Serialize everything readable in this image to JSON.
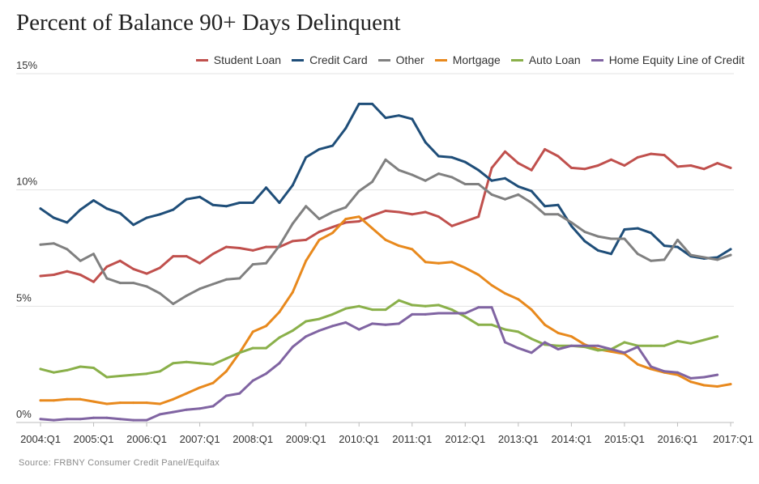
{
  "chart_data": {
    "type": "line",
    "title": "Percent of Balance 90+ Days Delinquent",
    "source": "Source: FRBNY Consumer Credit Panel/Equifax",
    "xlabel": "",
    "ylabel": "",
    "ylim": [
      0,
      15
    ],
    "y_ticks": [
      0,
      5,
      10,
      15
    ],
    "y_tick_labels": [
      "0%",
      "5%",
      "10%",
      "15%"
    ],
    "x_ticks": [
      "2004:Q1",
      "2005:Q1",
      "2006:Q1",
      "2007:Q1",
      "2008:Q1",
      "2009:Q1",
      "2010:Q1",
      "2011:Q1",
      "2012:Q1",
      "2013:Q1",
      "2014:Q1",
      "2015:Q1",
      "2016:Q1",
      "2017:Q1"
    ],
    "grid": true,
    "legend_position": "top-right",
    "series": [
      {
        "name": "Student Loan",
        "color": "#c0504d",
        "values": [
          6.3,
          6.35,
          6.5,
          6.35,
          6.05,
          6.7,
          6.95,
          6.6,
          6.4,
          6.65,
          7.15,
          7.15,
          6.85,
          7.25,
          7.55,
          7.5,
          7.4,
          7.55,
          7.55,
          7.8,
          7.85,
          8.2,
          8.4,
          8.6,
          8.65,
          8.9,
          9.1,
          9.05,
          8.95,
          9.05,
          8.85,
          8.45,
          8.65,
          8.85,
          10.95,
          11.65,
          11.15,
          10.85,
          11.75,
          11.45,
          10.95,
          10.9,
          11.05,
          11.3,
          11.05,
          11.4,
          11.55,
          11.5,
          11.0,
          11.05,
          10.9,
          11.15,
          10.95
        ]
      },
      {
        "name": "Credit Card",
        "color": "#1f4e79",
        "values": [
          9.2,
          8.8,
          8.6,
          9.15,
          9.55,
          9.2,
          9.0,
          8.5,
          8.8,
          8.95,
          9.15,
          9.6,
          9.7,
          9.35,
          9.3,
          9.45,
          9.45,
          10.1,
          9.45,
          10.2,
          11.4,
          11.75,
          11.9,
          12.65,
          13.7,
          13.7,
          13.1,
          13.2,
          13.05,
          12.05,
          11.45,
          11.4,
          11.2,
          10.85,
          10.4,
          10.5,
          10.15,
          9.95,
          9.3,
          9.35,
          8.45,
          7.8,
          7.4,
          7.25,
          8.3,
          8.35,
          8.15,
          7.6,
          7.55,
          7.15,
          7.05,
          7.1,
          7.45
        ]
      },
      {
        "name": "Other",
        "color": "#808080",
        "values": [
          7.65,
          7.7,
          7.45,
          6.95,
          7.25,
          6.2,
          6.0,
          6.0,
          5.85,
          5.55,
          5.1,
          5.45,
          5.75,
          5.95,
          6.15,
          6.2,
          6.8,
          6.85,
          7.6,
          8.55,
          9.3,
          8.75,
          9.05,
          9.25,
          9.95,
          10.35,
          11.3,
          10.85,
          10.65,
          10.4,
          10.7,
          10.55,
          10.25,
          10.25,
          9.8,
          9.6,
          9.8,
          9.45,
          8.95,
          8.95,
          8.6,
          8.2,
          8.0,
          7.9,
          7.9,
          7.25,
          6.95,
          7.0,
          7.85,
          7.2,
          7.1,
          7.0,
          7.2
        ]
      },
      {
        "name": "Mortgage",
        "color": "#e8891d",
        "values": [
          0.95,
          0.95,
          1.0,
          1.0,
          0.9,
          0.8,
          0.85,
          0.85,
          0.85,
          0.8,
          1.0,
          1.25,
          1.5,
          1.7,
          2.2,
          3.0,
          3.9,
          4.15,
          4.75,
          5.6,
          6.95,
          7.85,
          8.15,
          8.75,
          8.85,
          8.35,
          7.85,
          7.6,
          7.45,
          6.9,
          6.85,
          6.9,
          6.65,
          6.35,
          5.9,
          5.55,
          5.3,
          4.85,
          4.2,
          3.85,
          3.7,
          3.35,
          3.15,
          3.05,
          2.95,
          2.5,
          2.3,
          2.15,
          2.05,
          1.75,
          1.6,
          1.55,
          1.65
        ]
      },
      {
        "name": "Auto Loan",
        "color": "#8ab04a",
        "values": [
          2.3,
          2.15,
          2.25,
          2.4,
          2.35,
          1.95,
          2.0,
          2.05,
          2.1,
          2.2,
          2.55,
          2.6,
          2.55,
          2.5,
          2.75,
          3.0,
          3.2,
          3.2,
          3.65,
          3.95,
          4.35,
          4.45,
          4.65,
          4.9,
          5.0,
          4.85,
          4.85,
          5.25,
          5.05,
          5.0,
          5.05,
          4.85,
          4.55,
          4.2,
          4.2,
          4.0,
          3.9,
          3.6,
          3.35,
          3.3,
          3.3,
          3.25,
          3.1,
          3.15,
          3.45,
          3.3,
          3.3,
          3.3,
          3.5,
          3.4,
          3.55,
          3.7
        ]
      },
      {
        "name": "Home Equity Line of Credit",
        "color": "#8064a2",
        "values": [
          0.15,
          0.1,
          0.15,
          0.15,
          0.2,
          0.2,
          0.15,
          0.1,
          0.1,
          0.35,
          0.45,
          0.55,
          0.6,
          0.7,
          1.15,
          1.25,
          1.8,
          2.1,
          2.55,
          3.25,
          3.7,
          3.95,
          4.15,
          4.3,
          4.0,
          4.25,
          4.2,
          4.25,
          4.65,
          4.65,
          4.7,
          4.7,
          4.7,
          4.95,
          4.95,
          3.45,
          3.2,
          3.0,
          3.45,
          3.15,
          3.3,
          3.3,
          3.3,
          3.15,
          3.0,
          3.25,
          2.4,
          2.2,
          2.15,
          1.9,
          1.95,
          2.05
        ]
      }
    ]
  }
}
